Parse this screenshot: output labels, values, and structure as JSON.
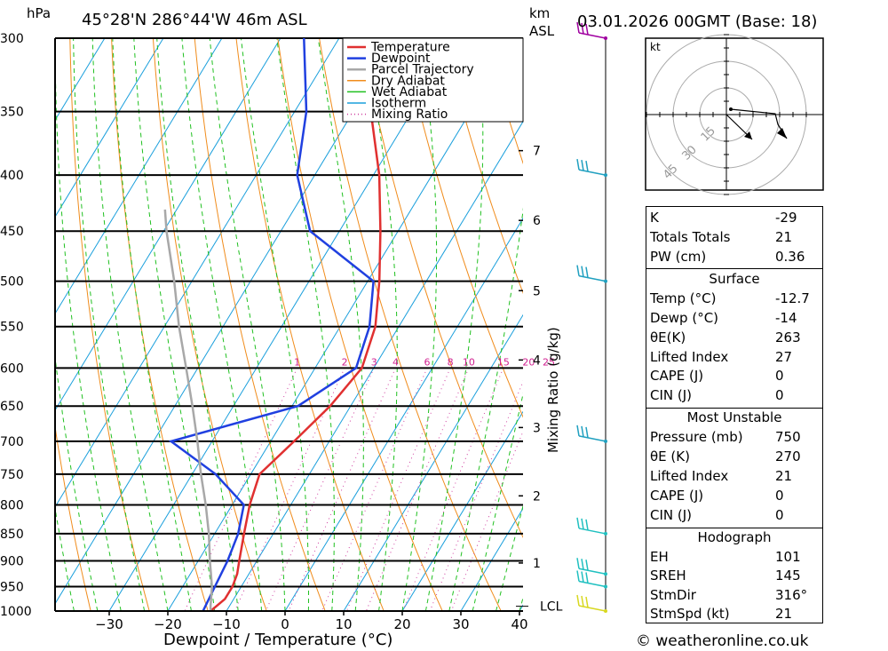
{
  "header": {
    "hpa_unit": "hPa",
    "location": "45°28'N  286°44'W  46m  ASL",
    "km_unit": "km",
    "asl_label": "ASL",
    "datetime": "03.01.2026  00GMT  (Base: 18)"
  },
  "chart_data": {
    "type": "skew-t",
    "xlabel": "Dewpoint / Temperature (°C)",
    "ylabel_left": "hPa",
    "mixing_ratio_axis_label": "Mixing Ratio (g/kg)",
    "x_ticks": [
      -30,
      -20,
      -10,
      0,
      10,
      20,
      30,
      40
    ],
    "pressure_levels": [
      300,
      350,
      400,
      450,
      500,
      550,
      600,
      650,
      700,
      750,
      800,
      850,
      900,
      950,
      1000
    ],
    "km_ticks": [
      {
        "km": "1",
        "p": 904
      },
      {
        "km": "2",
        "p": 785
      },
      {
        "km": "3",
        "p": 680
      },
      {
        "km": "4",
        "p": 590
      },
      {
        "km": "5",
        "p": 510
      },
      {
        "km": "6",
        "p": 440
      },
      {
        "km": "7",
        "p": 380
      }
    ],
    "lcl": {
      "label": "LCL",
      "p": 990
    },
    "mixing_ratio_values": [
      1,
      2,
      3,
      4,
      6,
      8,
      10,
      15,
      20,
      25
    ],
    "legend": [
      "Temperature",
      "Dewpoint",
      "Parcel Trajectory",
      "Dry Adiabat",
      "Wet Adiabat",
      "Isotherm",
      "Mixing Ratio"
    ],
    "series": [
      {
        "name": "Temperature",
        "color": "#e03030",
        "points": [
          [
            1000,
            -12.7
          ],
          [
            975,
            -11.5
          ],
          [
            950,
            -11.5
          ],
          [
            925,
            -12
          ],
          [
            900,
            -13
          ],
          [
            850,
            -15
          ],
          [
            800,
            -17
          ],
          [
            750,
            -18.5
          ],
          [
            700,
            -16
          ],
          [
            650,
            -13.5
          ],
          [
            600,
            -12
          ],
          [
            550,
            -14
          ],
          [
            500,
            -18
          ],
          [
            450,
            -23
          ],
          [
            400,
            -29
          ],
          [
            350,
            -37
          ],
          [
            300,
            -45
          ]
        ]
      },
      {
        "name": "Dewpoint",
        "color": "#2040e0",
        "points": [
          [
            1000,
            -14
          ],
          [
            950,
            -14.5
          ],
          [
            900,
            -15
          ],
          [
            850,
            -16
          ],
          [
            800,
            -18
          ],
          [
            750,
            -26
          ],
          [
            700,
            -37
          ],
          [
            650,
            -19
          ],
          [
            600,
            -13
          ],
          [
            550,
            -15
          ],
          [
            500,
            -19
          ],
          [
            450,
            -35
          ],
          [
            400,
            -43
          ],
          [
            350,
            -48
          ],
          [
            300,
            -56
          ]
        ]
      },
      {
        "name": "Parcel Trajectory",
        "color": "#a8a8a8",
        "points": [
          [
            1000,
            -12.7
          ],
          [
            990,
            -13.2
          ],
          [
            950,
            -15
          ],
          [
            900,
            -18
          ],
          [
            850,
            -21
          ],
          [
            800,
            -24.5
          ],
          [
            750,
            -28.5
          ],
          [
            700,
            -32.5
          ],
          [
            650,
            -37
          ],
          [
            600,
            -42
          ],
          [
            550,
            -47.5
          ],
          [
            500,
            -53
          ],
          [
            450,
            -59.5
          ],
          [
            430,
            -62
          ]
        ]
      }
    ],
    "wind_barbs": [
      {
        "p": 300,
        "color": "#a000a0"
      },
      {
        "p": 400,
        "color": "#20a0c0"
      },
      {
        "p": 500,
        "color": "#20a0c0"
      },
      {
        "p": 700,
        "color": "#20a0c0"
      },
      {
        "p": 850,
        "color": "#20c0c0"
      },
      {
        "p": 925,
        "color": "#20c0c0"
      },
      {
        "p": 950,
        "color": "#20c0c0"
      },
      {
        "p": 1000,
        "color": "#d8d820"
      }
    ],
    "hodograph": {
      "unit": "kt",
      "rings": [
        "15",
        "30",
        "45"
      ]
    }
  },
  "indices": {
    "k_label": "K",
    "k_value": "-29",
    "tt_label": "Totals Totals",
    "tt_value": "21",
    "pw_label": "PW (cm)",
    "pw_value": "0.36",
    "surface_title": "Surface",
    "temp_label": "Temp (°C)",
    "temp_value": "-12.7",
    "dewp_label": "Dewp (°C)",
    "dewp_value": "-14",
    "thetae_label": "θE(K)",
    "thetae_value": "263",
    "li_label": "Lifted Index",
    "li_value": "27",
    "cape_label": "CAPE (J)",
    "cape_value": "0",
    "cin_label": "CIN (J)",
    "cin_value": "0",
    "mu_title": "Most Unstable",
    "mu_pressure_label": "Pressure (mb)",
    "mu_pressure_value": "750",
    "mu_thetae_label": "θE (K)",
    "mu_thetae_value": "270",
    "mu_li_label": "Lifted Index",
    "mu_li_value": "21",
    "mu_cape_label": "CAPE (J)",
    "mu_cape_value": "0",
    "mu_cin_label": "CIN (J)",
    "mu_cin_value": "0",
    "hodo_title": "Hodograph",
    "eh_label": "EH",
    "eh_value": "101",
    "sreh_label": "SREH",
    "sreh_value": "145",
    "stmdir_label": "StmDir",
    "stmdir_value": "316°",
    "stmspd_label": "StmSpd (kt)",
    "stmspd_value": "21"
  },
  "footer": {
    "copyright": "© weatheronline.co.uk"
  }
}
